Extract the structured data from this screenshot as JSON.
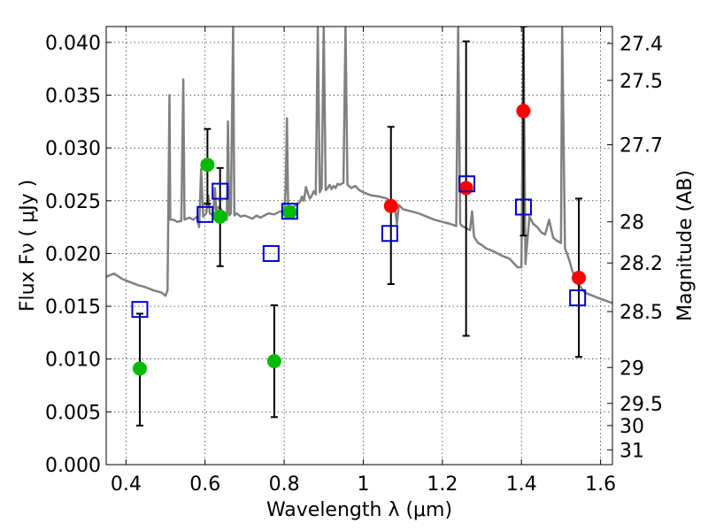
{
  "chart_data": {
    "type": "scatter",
    "title": "",
    "xlabel": "Wavelength  λ (μm)",
    "ylabel": "Flux  Fν  ( μJy )",
    "ylabel_right": "Magnitude (AB)",
    "xlim": [
      0.35,
      1.63
    ],
    "ylim": [
      0.0,
      0.0415
    ],
    "grid": true,
    "grid_style": "dotted",
    "x_ticks": [
      0.4,
      0.6,
      0.8,
      1.0,
      1.2,
      1.4,
      1.6
    ],
    "x_tick_labels": [
      "0.4",
      "0.6",
      "0.8",
      "1",
      "1.2",
      "1.4",
      "1.6"
    ],
    "y_ticks": [
      0.0,
      0.005,
      0.01,
      0.015,
      0.02,
      0.025,
      0.03,
      0.035,
      0.04
    ],
    "y_tick_labels": [
      "0.000",
      "0.005",
      "0.010",
      "0.015",
      "0.020",
      "0.025",
      "0.030",
      "0.035",
      "0.040"
    ],
    "right_ticks": [
      {
        "label": "27.4",
        "flux": 0.0399
      },
      {
        "label": "27.5",
        "flux": 0.0364
      },
      {
        "label": "27.7",
        "flux": 0.0303
      },
      {
        "label": "28",
        "flux": 0.023
      },
      {
        "label": "28.2",
        "flux": 0.0191
      },
      {
        "label": "28.5",
        "flux": 0.0145
      },
      {
        "label": "29",
        "flux": 0.0092
      },
      {
        "label": "29.5",
        "flux": 0.0058
      },
      {
        "label": "30",
        "flux": 0.0037
      },
      {
        "label": "31",
        "flux": 0.0014
      }
    ],
    "colors": {
      "green": "#00bb00",
      "red": "#ff0000",
      "blue": "#0000cc",
      "model": "#808080"
    },
    "series": [
      {
        "marker": "circle",
        "color": "#00bb00",
        "points": [
          {
            "x": 0.435,
            "y": 0.0091,
            "err": [
              0.0037,
              0.0143
            ]
          },
          {
            "x": 0.606,
            "y": 0.0284,
            "err": [
              0.0247,
              0.0318
            ]
          },
          {
            "x": 0.638,
            "y": 0.0235,
            "err": [
              0.0188,
              0.0281
            ]
          },
          {
            "x": 0.775,
            "y": 0.0098,
            "err": [
              0.0045,
              0.0151
            ]
          },
          {
            "x": 0.814,
            "y": 0.0239
          }
        ]
      },
      {
        "marker": "circle",
        "color": "#ff0000",
        "points": [
          {
            "x": 1.07,
            "y": 0.0245,
            "err": [
              0.0171,
              0.032
            ]
          },
          {
            "x": 1.26,
            "y": 0.0262,
            "err": [
              0.0122,
              0.0401
            ]
          },
          {
            "x": 1.405,
            "y": 0.0335,
            "err": [
              0.0217,
              0.0415
            ]
          },
          {
            "x": 1.545,
            "y": 0.0177,
            "err": [
              0.0102,
              0.0252
            ]
          }
        ]
      },
      {
        "marker": "open-square",
        "color": "#0000cc",
        "points": [
          {
            "x": 0.435,
            "y": 0.0147
          },
          {
            "x": 0.6,
            "y": 0.0237
          },
          {
            "x": 0.638,
            "y": 0.0259
          },
          {
            "x": 0.767,
            "y": 0.02
          },
          {
            "x": 0.814,
            "y": 0.024
          },
          {
            "x": 1.067,
            "y": 0.0219
          },
          {
            "x": 1.262,
            "y": 0.0266
          },
          {
            "x": 1.405,
            "y": 0.0244
          },
          {
            "x": 1.542,
            "y": 0.0158
          }
        ]
      }
    ],
    "model_spectrum": [
      [
        0.35,
        0.0178
      ],
      [
        0.37,
        0.0181
      ],
      [
        0.39,
        0.0176
      ],
      [
        0.41,
        0.0173
      ],
      [
        0.43,
        0.017
      ],
      [
        0.45,
        0.0168
      ],
      [
        0.47,
        0.0165
      ],
      [
        0.49,
        0.0163
      ],
      [
        0.5,
        0.016
      ],
      [
        0.505,
        0.0165
      ],
      [
        0.51,
        0.035
      ],
      [
        0.512,
        0.0232
      ],
      [
        0.52,
        0.0232
      ],
      [
        0.53,
        0.023
      ],
      [
        0.54,
        0.0231
      ],
      [
        0.545,
        0.0365
      ],
      [
        0.548,
        0.0232
      ],
      [
        0.56,
        0.0234
      ],
      [
        0.57,
        0.0232
      ],
      [
        0.58,
        0.0235
      ],
      [
        0.585,
        0.0225
      ],
      [
        0.59,
        0.028
      ],
      [
        0.595,
        0.0235
      ],
      [
        0.603,
        0.0238
      ],
      [
        0.608,
        0.0255
      ],
      [
        0.612,
        0.0238
      ],
      [
        0.62,
        0.0236
      ],
      [
        0.625,
        0.0262
      ],
      [
        0.628,
        0.0241
      ],
      [
        0.633,
        0.0244
      ],
      [
        0.64,
        0.0242
      ],
      [
        0.645,
        0.0238
      ],
      [
        0.655,
        0.0232
      ],
      [
        0.658,
        0.0325
      ],
      [
        0.661,
        0.0236
      ],
      [
        0.665,
        0.0238
      ],
      [
        0.671,
        0.0415
      ],
      [
        0.674,
        0.0236
      ],
      [
        0.68,
        0.0238
      ],
      [
        0.69,
        0.0235
      ],
      [
        0.7,
        0.0236
      ],
      [
        0.72,
        0.0233
      ],
      [
        0.73,
        0.0236
      ],
      [
        0.74,
        0.0234
      ],
      [
        0.75,
        0.0236
      ],
      [
        0.76,
        0.0238
      ],
      [
        0.775,
        0.0237
      ],
      [
        0.79,
        0.024
      ],
      [
        0.8,
        0.0238
      ],
      [
        0.804,
        0.0262
      ],
      [
        0.807,
        0.0328
      ],
      [
        0.81,
        0.0245
      ],
      [
        0.82,
        0.0243
      ],
      [
        0.83,
        0.0246
      ],
      [
        0.84,
        0.0249
      ],
      [
        0.845,
        0.0254
      ],
      [
        0.85,
        0.025
      ],
      [
        0.855,
        0.0263
      ],
      [
        0.86,
        0.0257
      ],
      [
        0.865,
        0.0252
      ],
      [
        0.87,
        0.0255
      ],
      [
        0.875,
        0.0259
      ],
      [
        0.88,
        0.0256
      ],
      [
        0.885,
        0.0415
      ],
      [
        0.89,
        0.0258
      ],
      [
        0.895,
        0.0262
      ],
      [
        0.9,
        0.0415
      ],
      [
        0.905,
        0.026
      ],
      [
        0.91,
        0.0262
      ],
      [
        0.915,
        0.0265
      ],
      [
        0.92,
        0.0261
      ],
      [
        0.925,
        0.0264
      ],
      [
        0.93,
        0.0262
      ],
      [
        0.935,
        0.0266
      ],
      [
        0.94,
        0.0265
      ],
      [
        0.95,
        0.0267
      ],
      [
        0.955,
        0.0415
      ],
      [
        0.96,
        0.0265
      ],
      [
        0.97,
        0.0262
      ],
      [
        0.98,
        0.0264
      ],
      [
        0.99,
        0.026
      ],
      [
        1.0,
        0.0258
      ],
      [
        1.02,
        0.0255
      ],
      [
        1.04,
        0.0254
      ],
      [
        1.06,
        0.0252
      ],
      [
        1.08,
        0.0245
      ],
      [
        1.085,
        0.0228
      ],
      [
        1.09,
        0.0246
      ],
      [
        1.1,
        0.0242
      ],
      [
        1.12,
        0.024
      ],
      [
        1.14,
        0.0238
      ],
      [
        1.16,
        0.0235
      ],
      [
        1.18,
        0.0232
      ],
      [
        1.2,
        0.023
      ],
      [
        1.22,
        0.0228
      ],
      [
        1.235,
        0.0226
      ],
      [
        1.24,
        0.0415
      ],
      [
        1.245,
        0.0228
      ],
      [
        1.25,
        0.0226
      ],
      [
        1.26,
        0.0224
      ],
      [
        1.27,
        0.0222
      ],
      [
        1.275,
        0.024
      ],
      [
        1.28,
        0.0216
      ],
      [
        1.29,
        0.021
      ],
      [
        1.3,
        0.0208
      ],
      [
        1.31,
        0.0205
      ],
      [
        1.33,
        0.0202
      ],
      [
        1.35,
        0.0198
      ],
      [
        1.37,
        0.0195
      ],
      [
        1.39,
        0.0187
      ],
      [
        1.4,
        0.0187
      ],
      [
        1.405,
        0.0415
      ],
      [
        1.41,
        0.019
      ],
      [
        1.415,
        0.0212
      ],
      [
        1.42,
        0.0235
      ],
      [
        1.43,
        0.0228
      ],
      [
        1.44,
        0.0225
      ],
      [
        1.45,
        0.022
      ],
      [
        1.46,
        0.0218
      ],
      [
        1.47,
        0.0232
      ],
      [
        1.48,
        0.0215
      ],
      [
        1.49,
        0.0212
      ],
      [
        1.5,
        0.021
      ],
      [
        1.503,
        0.0415
      ],
      [
        1.51,
        0.0205
      ],
      [
        1.52,
        0.0195
      ],
      [
        1.53,
        0.0182
      ],
      [
        1.54,
        0.0172
      ],
      [
        1.55,
        0.0168
      ],
      [
        1.56,
        0.0163
      ],
      [
        1.58,
        0.016
      ],
      [
        1.6,
        0.0157
      ],
      [
        1.63,
        0.0153
      ]
    ]
  }
}
